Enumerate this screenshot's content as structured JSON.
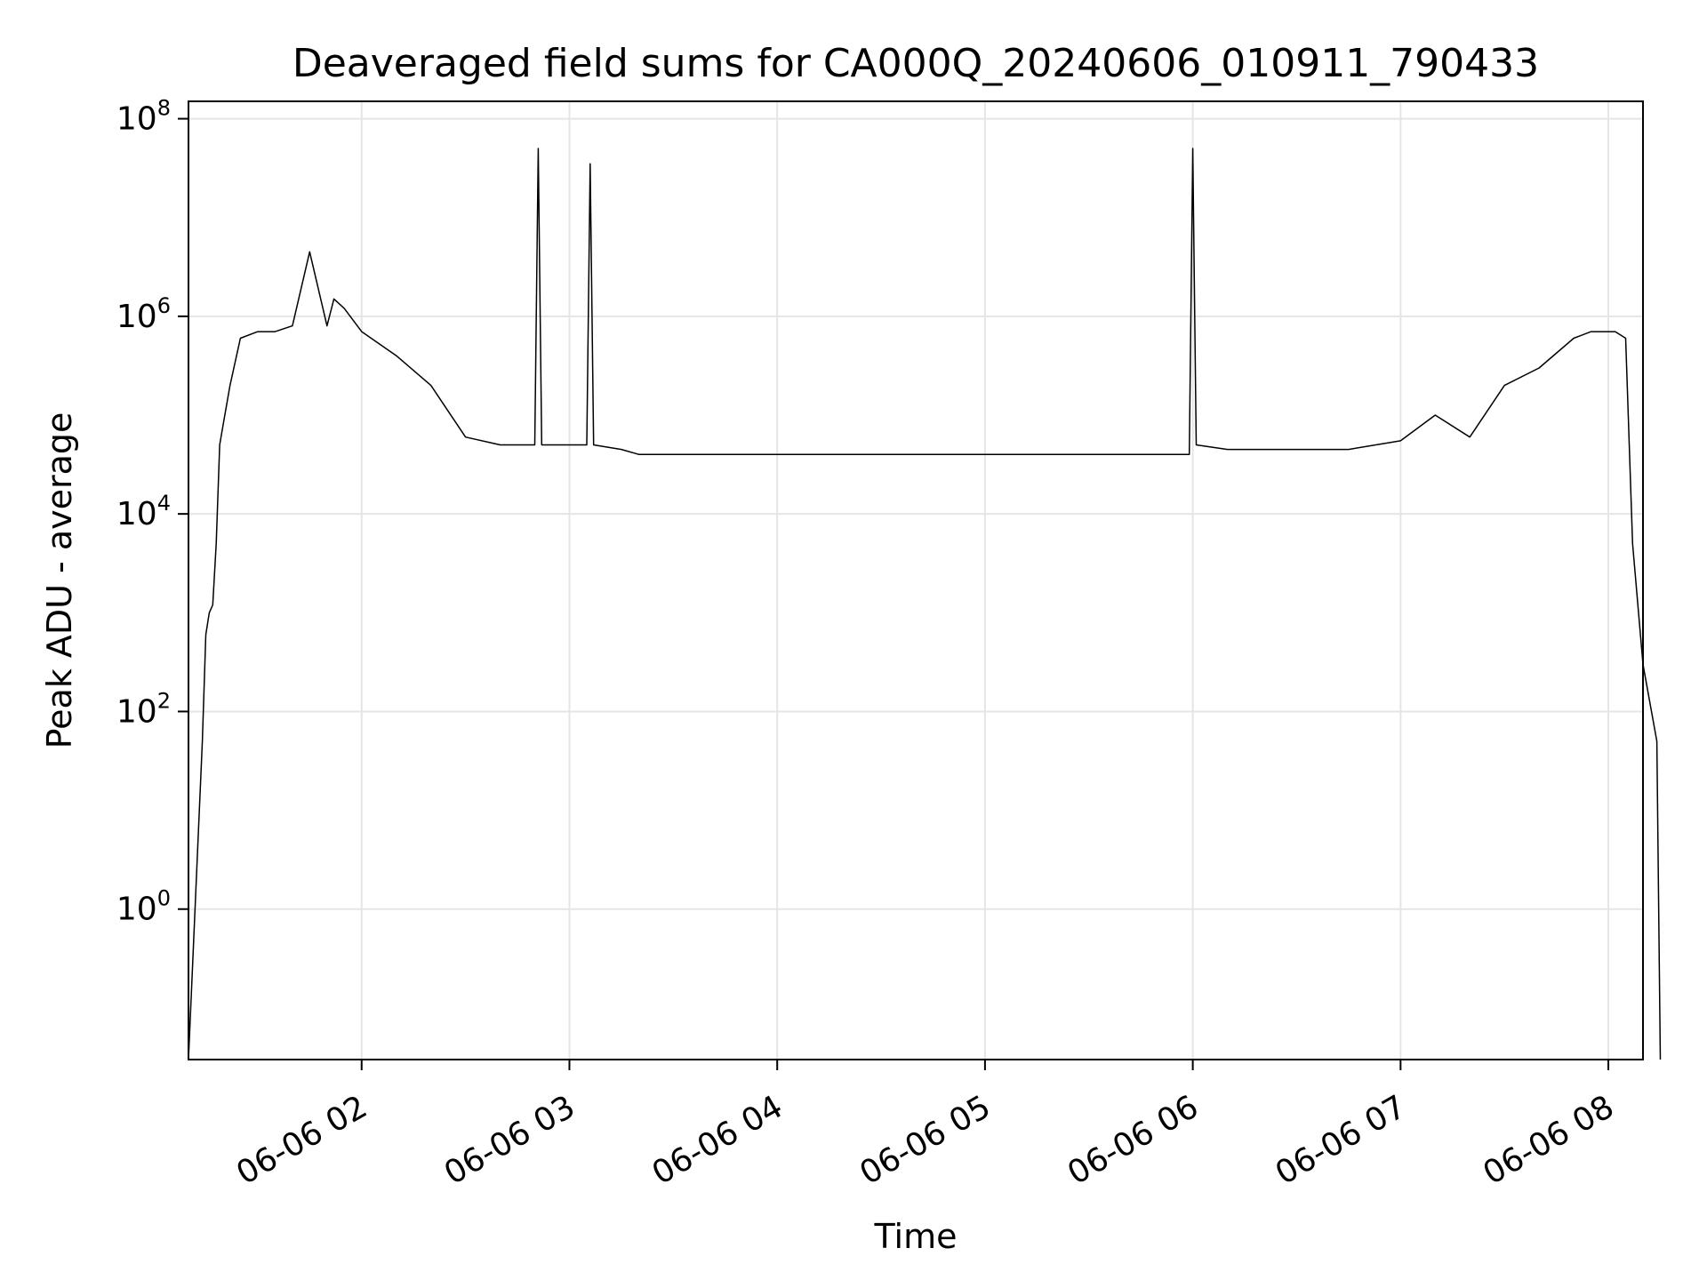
{
  "chart_data": {
    "type": "line",
    "title": "Deaveraged field sums for CA000Q_20240606_010911_790433",
    "xlabel": "Time",
    "ylabel": "Peak ADU - average",
    "y_scale": "log",
    "ylim": [
      0.03,
      150000000
    ],
    "xlim": [
      "2024-06-06 01:10",
      "2024-06-06 08:10"
    ],
    "grid": true,
    "legend": "none",
    "line_color": "#000000",
    "grid_color": "#e5e5e5",
    "x_ticks": [
      {
        "value": "2024-06-06 02:00",
        "label": "06-06 02"
      },
      {
        "value": "2024-06-06 03:00",
        "label": "06-06 03"
      },
      {
        "value": "2024-06-06 04:00",
        "label": "06-06 04"
      },
      {
        "value": "2024-06-06 05:00",
        "label": "06-06 05"
      },
      {
        "value": "2024-06-06 06:00",
        "label": "06-06 06"
      },
      {
        "value": "2024-06-06 07:00",
        "label": "06-06 07"
      },
      {
        "value": "2024-06-06 08:00",
        "label": "06-06 08"
      }
    ],
    "y_ticks": [
      {
        "value": 1,
        "base": "10",
        "exp": "0"
      },
      {
        "value": 100,
        "base": "10",
        "exp": "2"
      },
      {
        "value": 10000,
        "base": "10",
        "exp": "4"
      },
      {
        "value": 1000000,
        "base": "10",
        "exp": "6"
      },
      {
        "value": 100000000,
        "base": "10",
        "exp": "8"
      }
    ],
    "series": [
      {
        "x": [
          "2024-06-06 01:10",
          "2024-06-06 01:14",
          "2024-06-06 01:15",
          "2024-06-06 01:16",
          "2024-06-06 01:17",
          "2024-06-06 01:18",
          "2024-06-06 01:19",
          "2024-06-06 01:20",
          "2024-06-06 01:22",
          "2024-06-06 01:25",
          "2024-06-06 01:30",
          "2024-06-06 01:35",
          "2024-06-06 01:40",
          "2024-06-06 01:45",
          "2024-06-06 01:50",
          "2024-06-06 01:52",
          "2024-06-06 01:55",
          "2024-06-06 02:00",
          "2024-06-06 02:10",
          "2024-06-06 02:20",
          "2024-06-06 02:30",
          "2024-06-06 02:40",
          "2024-06-06 02:50",
          "2024-06-06 02:51",
          "2024-06-06 02:52",
          "2024-06-06 03:00",
          "2024-06-06 03:05",
          "2024-06-06 03:06",
          "2024-06-06 03:07",
          "2024-06-06 03:15",
          "2024-06-06 03:20",
          "2024-06-06 03:30",
          "2024-06-06 03:45",
          "2024-06-06 04:00",
          "2024-06-06 04:30",
          "2024-06-06 05:00",
          "2024-06-06 05:30",
          "2024-06-06 05:59",
          "2024-06-06 06:00",
          "2024-06-06 06:01",
          "2024-06-06 06:10",
          "2024-06-06 06:30",
          "2024-06-06 06:45",
          "2024-06-06 07:00",
          "2024-06-06 07:10",
          "2024-06-06 07:20",
          "2024-06-06 07:30",
          "2024-06-06 07:40",
          "2024-06-06 07:50",
          "2024-06-06 07:55",
          "2024-06-06 08:00",
          "2024-06-06 08:02",
          "2024-06-06 08:05",
          "2024-06-06 08:07",
          "2024-06-06 08:10",
          "2024-06-06 08:14",
          "2024-06-06 08:15"
        ],
        "y": [
          0.03,
          50,
          600,
          1000,
          1200,
          5000,
          50000,
          80000,
          200000,
          600000,
          700000,
          700000,
          800000,
          4500000,
          800000,
          1500000,
          1200000,
          700000,
          400000,
          200000,
          60000,
          50000,
          50000,
          50000000,
          50000,
          50000,
          50000,
          35000000,
          50000,
          45000,
          40000,
          40000,
          40000,
          40000,
          40000,
          40000,
          40000,
          40000,
          50000000,
          50000,
          45000,
          45000,
          45000,
          55000,
          100000,
          60000,
          200000,
          300000,
          600000,
          700000,
          700000,
          700000,
          600000,
          5000,
          300,
          50,
          0.03
        ]
      }
    ]
  }
}
